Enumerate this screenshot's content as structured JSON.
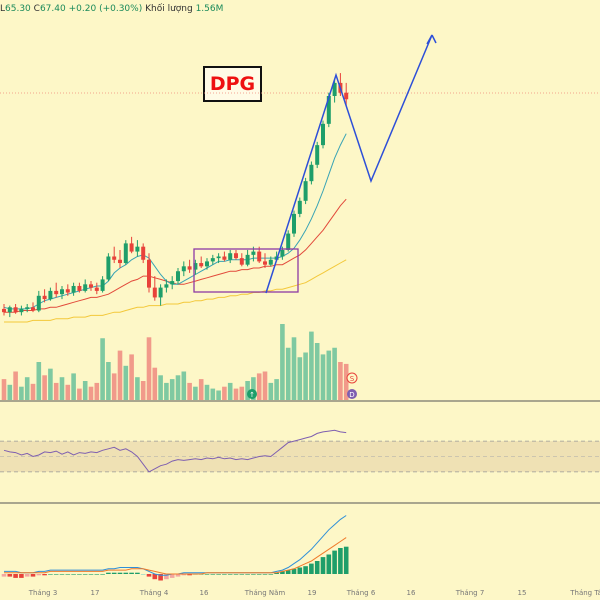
{
  "header": {
    "low_label": "L",
    "low_value": "65.30",
    "close_label": "C",
    "close_value": "67.40",
    "change_value": "+0.20",
    "change_pct": "(+0.30%)",
    "volume_label": "Khối lượng",
    "volume_value": "1.56M"
  },
  "ticker": "DPG",
  "volume_markers": [
    "S",
    "D"
  ],
  "event_marker": "↑",
  "xaxis_labels": [
    "Tháng 3",
    "17",
    "Tháng 4",
    "16",
    "Tháng Năm",
    "19",
    "Tháng 6",
    "16",
    "Tháng 7",
    "15",
    "Tháng Tá"
  ],
  "colors": {
    "background": "#fdf7c7",
    "up_candle": "#1e9e6a",
    "down_candle": "#e8423a",
    "up_volume": "#7fc9a1",
    "down_volume": "#f19a8a",
    "ma_fast": "#38a3b5",
    "ma_mid": "#e24a3b",
    "ma_slow": "#f3c83a",
    "rsi_line": "#7e5fb0",
    "rsi_band": "#efe1b4",
    "forecast_arrow": "#2d4fd8",
    "box": "#8e3ba5",
    "price_line": "#f08a7a"
  },
  "chart_data": {
    "type": "candlestick",
    "candles": [
      [
        20,
        23,
        16,
        18
      ],
      [
        18,
        22,
        15,
        21
      ],
      [
        21,
        23,
        17,
        18
      ],
      [
        18,
        22,
        16,
        20
      ],
      [
        20,
        23,
        18,
        21
      ],
      [
        21,
        24,
        18,
        19
      ],
      [
        19,
        31,
        18,
        28
      ],
      [
        28,
        32,
        24,
        26
      ],
      [
        26,
        33,
        25,
        31
      ],
      [
        31,
        36,
        27,
        29
      ],
      [
        29,
        34,
        26,
        32
      ],
      [
        32,
        35,
        28,
        30
      ],
      [
        30,
        36,
        28,
        34
      ],
      [
        34,
        36,
        30,
        31
      ],
      [
        31,
        38,
        30,
        35
      ],
      [
        35,
        37,
        31,
        33
      ],
      [
        33,
        36,
        29,
        31
      ],
      [
        31,
        40,
        30,
        38
      ],
      [
        38,
        54,
        37,
        52
      ],
      [
        52,
        58,
        48,
        50
      ],
      [
        50,
        56,
        45,
        48
      ],
      [
        48,
        62,
        47,
        60
      ],
      [
        60,
        64,
        54,
        55
      ],
      [
        55,
        62,
        52,
        58
      ],
      [
        58,
        60,
        48,
        50
      ],
      [
        50,
        54,
        30,
        33
      ],
      [
        33,
        40,
        25,
        27
      ],
      [
        27,
        35,
        22,
        33
      ],
      [
        33,
        38,
        30,
        35
      ],
      [
        35,
        40,
        32,
        37
      ],
      [
        37,
        45,
        35,
        43
      ],
      [
        43,
        49,
        40,
        46
      ],
      [
        46,
        50,
        42,
        44
      ],
      [
        44,
        50,
        41,
        48
      ],
      [
        48,
        52,
        45,
        46
      ],
      [
        46,
        51,
        44,
        49
      ],
      [
        49,
        53,
        47,
        51
      ],
      [
        51,
        54,
        48,
        52
      ],
      [
        52,
        55,
        49,
        50
      ],
      [
        50,
        56,
        48,
        54
      ],
      [
        54,
        56,
        50,
        51
      ],
      [
        51,
        54,
        46,
        47
      ],
      [
        47,
        56,
        46,
        53
      ],
      [
        53,
        58,
        49,
        55
      ],
      [
        55,
        58,
        48,
        49
      ],
      [
        49,
        54,
        45,
        47
      ],
      [
        47,
        52,
        46,
        50
      ],
      [
        50,
        55,
        49,
        52
      ],
      [
        52,
        58,
        50,
        56
      ],
      [
        56,
        68,
        55,
        66
      ],
      [
        66,
        80,
        64,
        78
      ],
      [
        78,
        88,
        76,
        86
      ],
      [
        86,
        100,
        84,
        98
      ],
      [
        98,
        110,
        96,
        108
      ],
      [
        108,
        122,
        106,
        120
      ],
      [
        120,
        135,
        118,
        133
      ],
      [
        133,
        152,
        131,
        150
      ],
      [
        150,
        160,
        146,
        158
      ],
      [
        158,
        164,
        150,
        152
      ],
      [
        152,
        158,
        144,
        148
      ]
    ],
    "ma_fast": [
      21,
      20,
      20,
      20,
      20,
      21,
      23,
      25,
      26,
      27,
      28,
      29,
      30,
      31,
      32,
      33,
      34,
      34,
      37,
      42,
      45,
      47,
      50,
      52,
      53,
      51,
      46,
      41,
      37,
      35,
      35,
      37,
      39,
      41,
      43,
      45,
      47,
      49,
      49,
      50,
      50,
      50,
      50,
      51,
      51,
      51,
      51,
      51,
      52,
      54,
      57,
      62,
      68,
      75,
      83,
      92,
      102,
      112,
      120,
      127
    ],
    "ma_mid": [
      18,
      18,
      18,
      19,
      19,
      19,
      20,
      20,
      21,
      21,
      22,
      23,
      24,
      25,
      26,
      27,
      27,
      28,
      29,
      31,
      33,
      35,
      37,
      38,
      40,
      40,
      39,
      38,
      37,
      36,
      35,
      35,
      36,
      37,
      38,
      39,
      40,
      41,
      42,
      43,
      43,
      44,
      44,
      45,
      45,
      46,
      46,
      47,
      47,
      49,
      51,
      53,
      56,
      60,
      64,
      68,
      73,
      78,
      83,
      87
    ],
    "ma_slow": [
      12,
      12,
      12,
      12,
      12,
      13,
      13,
      13,
      13,
      14,
      14,
      14,
      15,
      15,
      15,
      16,
      16,
      16,
      17,
      18,
      18,
      19,
      20,
      21,
      21,
      22,
      22,
      22,
      23,
      23,
      23,
      24,
      24,
      25,
      25,
      26,
      26,
      27,
      27,
      28,
      28,
      29,
      29,
      30,
      30,
      31,
      31,
      32,
      32,
      33,
      34,
      35,
      36,
      38,
      40,
      42,
      44,
      46,
      48,
      50
    ],
    "volume": [
      22,
      16,
      30,
      14,
      24,
      17,
      40,
      26,
      33,
      18,
      24,
      16,
      28,
      12,
      20,
      14,
      18,
      65,
      40,
      28,
      52,
      36,
      48,
      24,
      20,
      66,
      34,
      26,
      18,
      22,
      26,
      30,
      18,
      14,
      22,
      16,
      12,
      10,
      14,
      18,
      12,
      14,
      20,
      24,
      28,
      30,
      18,
      22,
      80,
      55,
      66,
      45,
      50,
      72,
      60,
      48,
      52,
      55,
      40,
      38
    ],
    "rsi": [
      58,
      56,
      55,
      52,
      54,
      50,
      52,
      56,
      55,
      57,
      53,
      56,
      52,
      55,
      54,
      56,
      55,
      58,
      60,
      62,
      58,
      60,
      56,
      50,
      40,
      30,
      34,
      38,
      40,
      44,
      46,
      45,
      46,
      47,
      46,
      48,
      47,
      49,
      47,
      48,
      46,
      47,
      46,
      48,
      50,
      51,
      50,
      56,
      62,
      68,
      70,
      72,
      74,
      76,
      80,
      82,
      83,
      84,
      82,
      81
    ],
    "macd": [
      -2,
      -2,
      -3,
      -3,
      -2,
      -2,
      -1,
      -1,
      0,
      0,
      0,
      0,
      0,
      0,
      0,
      0,
      0,
      0,
      1,
      1,
      1,
      1,
      1,
      1,
      0,
      -2,
      -4,
      -5,
      -4,
      -3,
      -2,
      -1,
      -1,
      0,
      0,
      0,
      0,
      0,
      0,
      0,
      0,
      0,
      0,
      0,
      0,
      0,
      0,
      1,
      2,
      3,
      4,
      5,
      6,
      8,
      10,
      13,
      15,
      18,
      20,
      21
    ],
    "macd_line": [
      2,
      2,
      2,
      1,
      1,
      1,
      2,
      2,
      3,
      3,
      3,
      3,
      3,
      3,
      3,
      3,
      3,
      3,
      4,
      4,
      5,
      5,
      5,
      5,
      4,
      2,
      0,
      -1,
      -1,
      0,
      0,
      1,
      1,
      1,
      1,
      1,
      1,
      1,
      1,
      1,
      1,
      1,
      1,
      1,
      1,
      1,
      1,
      2,
      3,
      5,
      8,
      11,
      15,
      19,
      24,
      29,
      34,
      38,
      42,
      45
    ],
    "signal_line": [
      1,
      1,
      1,
      1,
      1,
      1,
      1,
      1,
      2,
      2,
      2,
      2,
      2,
      2,
      2,
      2,
      2,
      2,
      3,
      3,
      3,
      3,
      4,
      4,
      4,
      3,
      2,
      1,
      0,
      0,
      0,
      0,
      0,
      0,
      0,
      1,
      1,
      1,
      1,
      1,
      1,
      1,
      1,
      1,
      1,
      1,
      1,
      1,
      2,
      3,
      4,
      6,
      8,
      10,
      13,
      16,
      19,
      22,
      25,
      28
    ]
  }
}
